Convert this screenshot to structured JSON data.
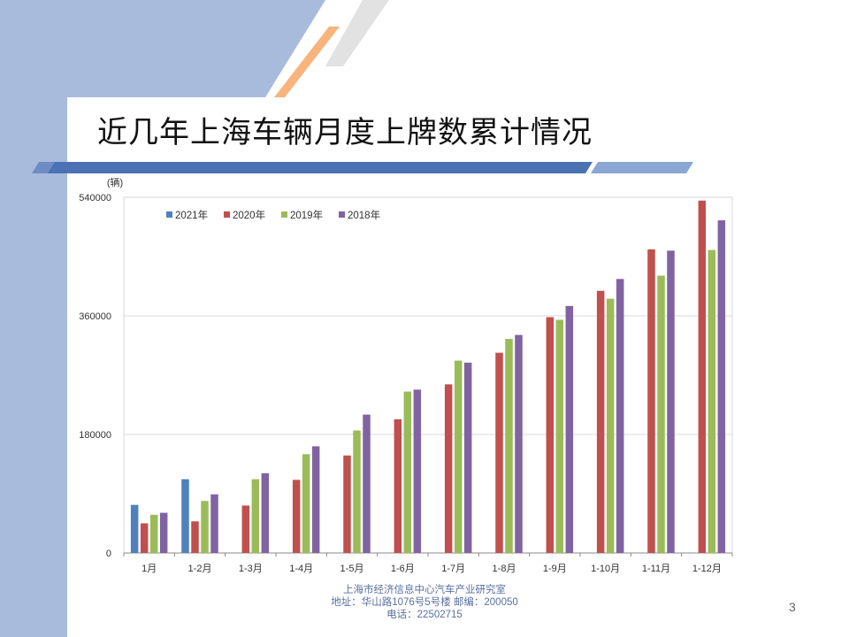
{
  "slide": {
    "title": "近几年上海车辆月度上牌数累计情况",
    "page_number": "3",
    "footer": {
      "line1": "上海市经济信息中心汽车产业研究室",
      "line2": "地址：华山路1076号5号楼    邮编：200050",
      "line3": "电话：22502715"
    }
  },
  "colors": {
    "sidebar": "#a8bbdc",
    "title_bar": "#4a72b4",
    "accent_orange": "#f8b47c",
    "accent_gray": "#e2e2e2"
  },
  "chart_data": {
    "type": "bar",
    "unit_label": "(辆)",
    "categories": [
      "1月",
      "1-2月",
      "1-3月",
      "1-4月",
      "1-5月",
      "1-6月",
      "1-7月",
      "1-8月",
      "1-9月",
      "1-10月",
      "1-11月",
      "1-12月"
    ],
    "y_ticks": [
      "540000",
      "360000",
      "180000",
      "0"
    ],
    "ylim": [
      0,
      540000
    ],
    "grid": true,
    "legend_position": "top-left",
    "series": [
      {
        "name": "2021年",
        "color": "#4f81bd",
        "values": [
          73000,
          112000,
          null,
          null,
          null,
          null,
          null,
          null,
          null,
          null,
          null,
          null
        ]
      },
      {
        "name": "2020年",
        "color": "#c0504d",
        "values": [
          45000,
          48000,
          72000,
          111000,
          148000,
          203000,
          256000,
          304000,
          358000,
          398000,
          461000,
          535000
        ]
      },
      {
        "name": "2019年",
        "color": "#9bbb59",
        "values": [
          58000,
          79000,
          112000,
          150000,
          186000,
          245000,
          292000,
          325000,
          354000,
          386000,
          421000,
          460000
        ]
      },
      {
        "name": "2018年",
        "color": "#8064a2",
        "values": [
          61000,
          89000,
          121000,
          162000,
          210000,
          248000,
          289000,
          331000,
          375000,
          416000,
          459000,
          505000
        ]
      }
    ]
  }
}
